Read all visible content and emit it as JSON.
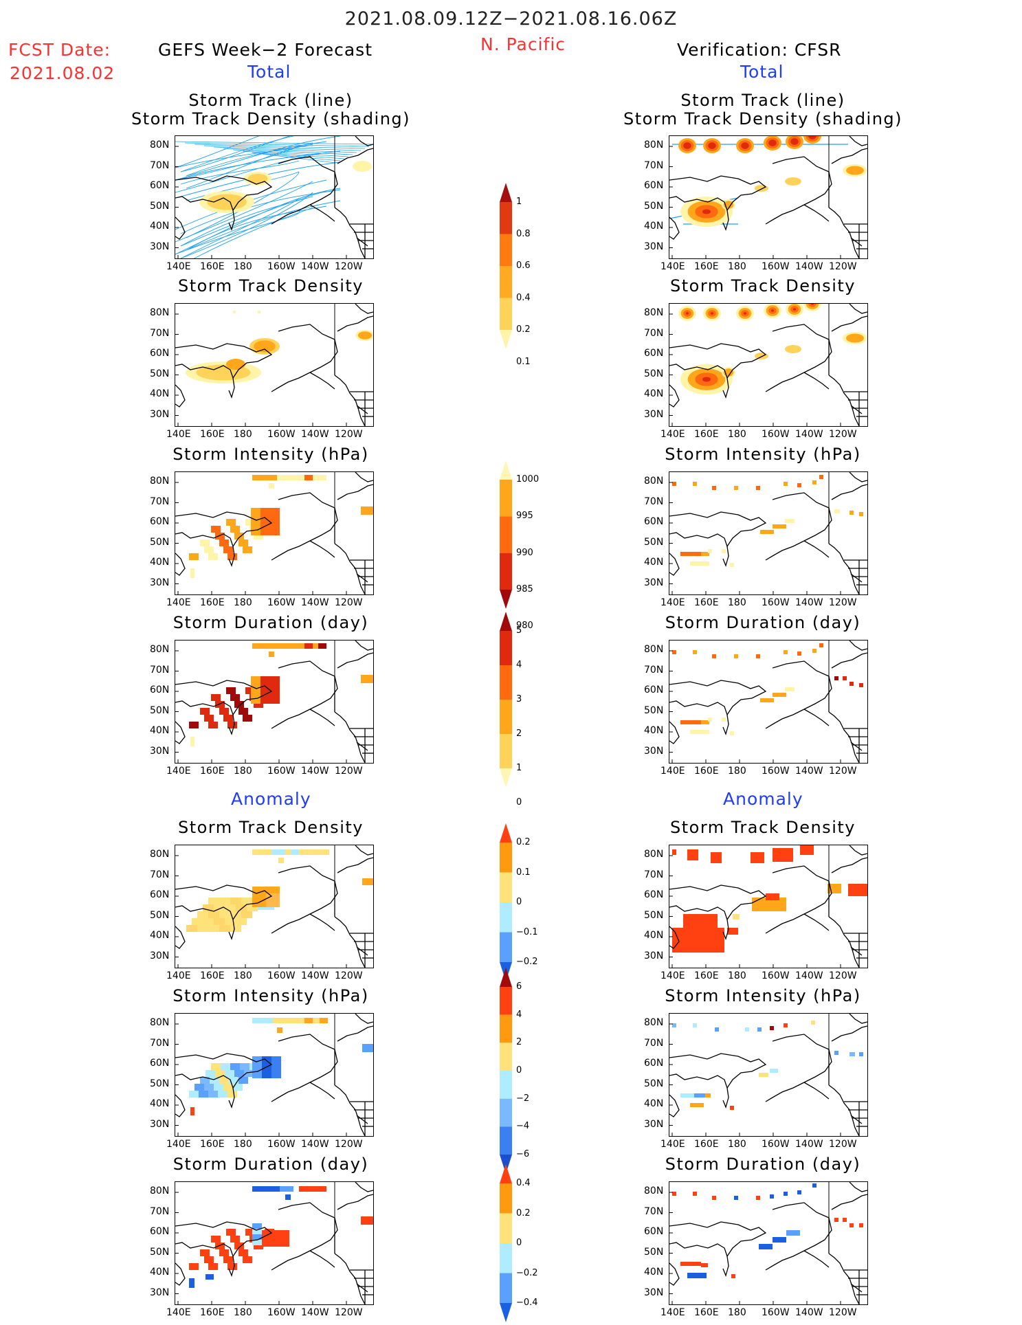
{
  "header": {
    "date_range": "2021.08.09.12Z−2021.08.16.06Z",
    "fcst_label": "FCST Date:",
    "fcst_date": "2021.08.02",
    "left_title": "GEFS Week−2 Forecast",
    "left_sub": "Total",
    "region": "N. Pacific",
    "right_title": "Verification: CFSR",
    "right_sub": "Total",
    "anomaly_left": "Anomaly",
    "anomaly_right": "Anomaly"
  },
  "axes": {
    "lat_labels": [
      "80N",
      "70N",
      "60N",
      "50N",
      "40N",
      "30N"
    ],
    "lon_labels": [
      "140E",
      "160E",
      "180",
      "160W",
      "140W",
      "120W"
    ]
  },
  "panels": {
    "total_track_title_1": "Storm Track (line)",
    "total_track_title_2": "Storm Track Density (shading)",
    "density_title": "Storm Track Density",
    "intensity_title": "Storm Intensity (hPa)",
    "duration_title": "Storm Duration (day)"
  },
  "colorbars": {
    "density": {
      "labels": [
        "1",
        "0.8",
        "0.6",
        "0.4",
        "0.2",
        "0.1"
      ],
      "colors": [
        "#a50f0f",
        "#e03a12",
        "#ff7a10",
        "#ffaa20",
        "#ffd25a",
        "#fff4a8"
      ]
    },
    "intensity": {
      "labels": [
        "1000",
        "995",
        "990",
        "985",
        "980"
      ],
      "colors": [
        "#fff6b5",
        "#ffa61a",
        "#ff6a10",
        "#e02a10",
        "#a00a0a"
      ]
    },
    "duration": {
      "labels": [
        "5",
        "4",
        "3",
        "2",
        "1",
        "0"
      ],
      "colors": [
        "#a00a0a",
        "#e02a10",
        "#ff6a10",
        "#ffa61a",
        "#ffd25a",
        "#fff6b5"
      ]
    },
    "anom_density": {
      "labels": [
        "0.2",
        "0.1",
        "0",
        "−0.1",
        "−0.2"
      ],
      "colors": [
        "#ff4010",
        "#ff9a10",
        "#ffe27a",
        "#b0ecff",
        "#5aa0ff",
        "#1a60e0"
      ]
    },
    "anom_intensity": {
      "labels": [
        "6",
        "4",
        "2",
        "0",
        "−2",
        "−4",
        "−6"
      ],
      "colors": [
        "#a00a0a",
        "#ff4010",
        "#ff9a10",
        "#ffe27a",
        "#b0ecff",
        "#7ab8ff",
        "#3a80f0",
        "#1a50d0"
      ]
    },
    "anom_duration": {
      "labels": [
        "0.4",
        "0.2",
        "0",
        "−0.2",
        "−0.4"
      ],
      "colors": [
        "#ff4010",
        "#ff9a10",
        "#ffe27a",
        "#b0ecff",
        "#5aa0ff",
        "#1a60e0"
      ]
    }
  },
  "colors": {
    "track_line": "#1ea0f0",
    "coast": "#000000"
  }
}
